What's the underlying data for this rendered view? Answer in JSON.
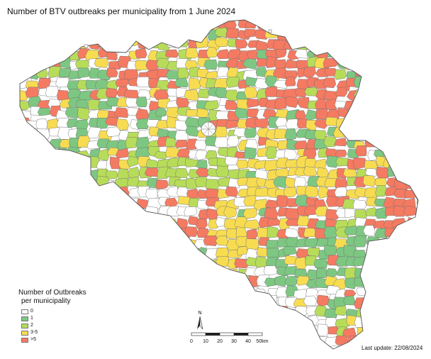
{
  "title": "Number of BTV outbreaks per municipality from 1 June 2024",
  "colors": {
    "zero": "#ffffff",
    "one": "#7dc782",
    "two": "#b7dc5a",
    "three_five": "#f7dc52",
    "more_five": "#f47a62",
    "border": "#6e6e6e"
  },
  "legend": {
    "heading": "Number of Outbreaks",
    "subheading": "per municipality",
    "items": [
      {
        "label": "0",
        "color": "#ffffff"
      },
      {
        "label": "1",
        "color": "#7dc782"
      },
      {
        "label": "2",
        "color": "#b7dc5a"
      },
      {
        "label": "3-5",
        "color": "#f7dc52"
      },
      {
        "label": ">5",
        "color": "#f47a62"
      }
    ]
  },
  "north_arrow": {
    "label": "N"
  },
  "scale_bar": {
    "ticks": [
      "0",
      "10",
      "20",
      "30",
      "40"
    ],
    "last_tick": "50",
    "unit": "km"
  },
  "last_update": "Last update: 22/08/2024"
}
